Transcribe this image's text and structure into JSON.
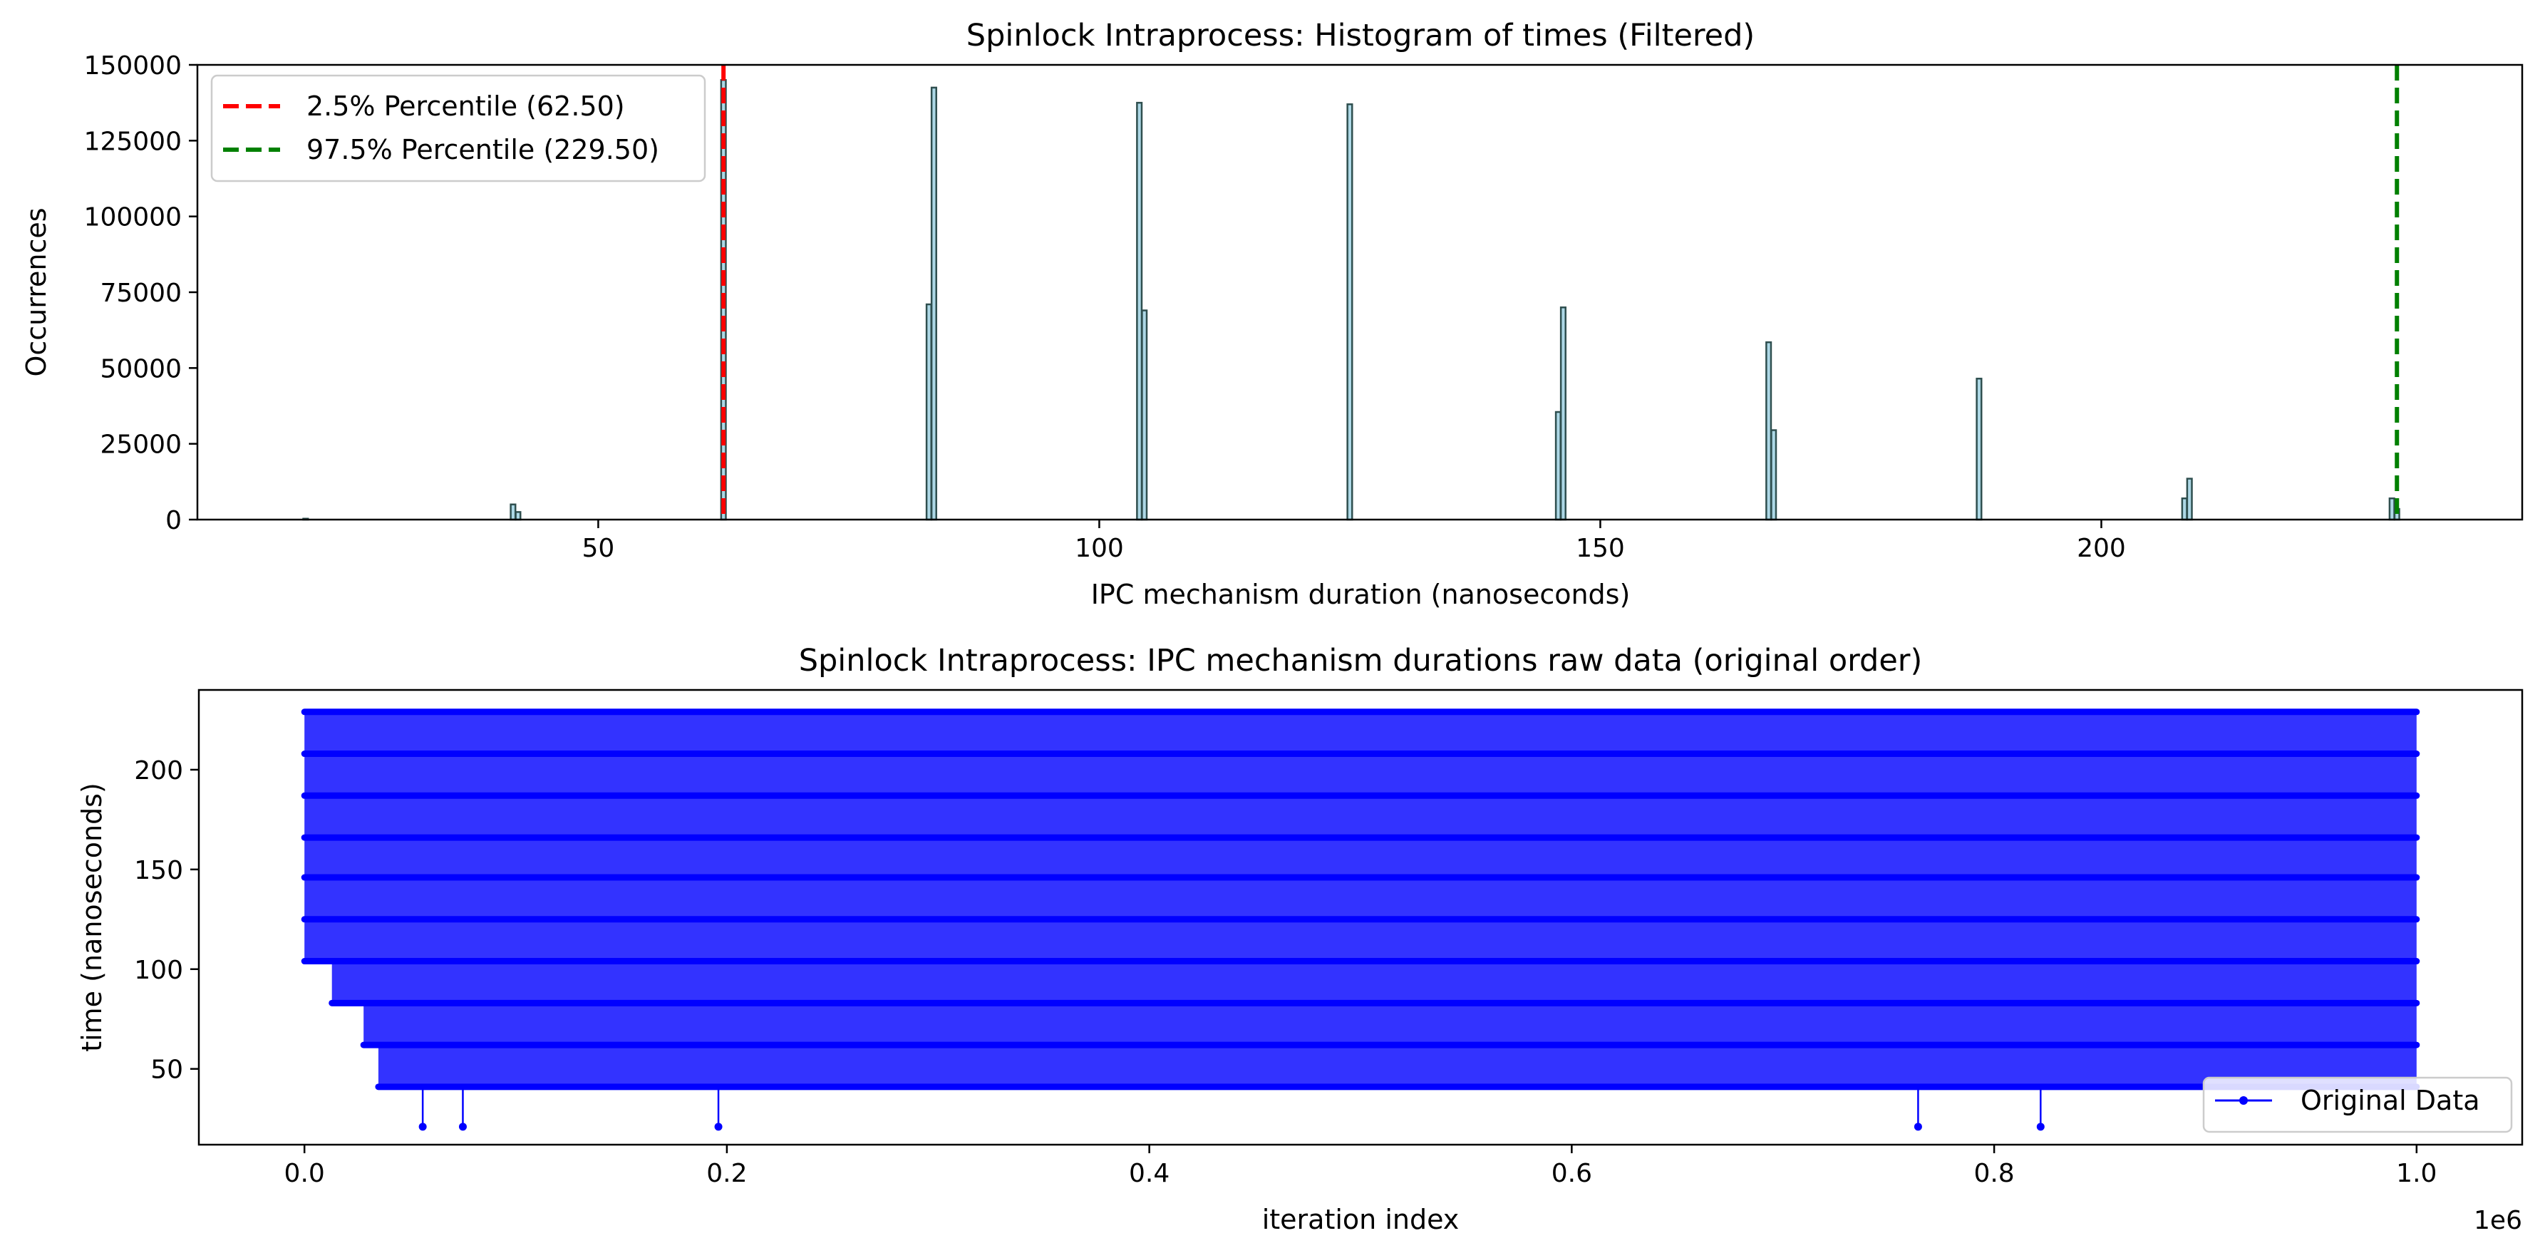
{
  "chart_data": [
    {
      "type": "bar",
      "title": "Spinlock Intraprocess: Histogram of times (Filtered)",
      "xlabel": "IPC mechanism duration (nanoseconds)",
      "ylabel": "Occurrences",
      "xlim": [
        10,
        242
      ],
      "ylim": [
        0,
        150000
      ],
      "xticks": [
        50,
        100,
        150,
        200
      ],
      "yticks": [
        0,
        25000,
        50000,
        75000,
        100000,
        125000,
        150000
      ],
      "bin_width": 0.47,
      "bars": [
        {
          "x": 20.8,
          "value": 300
        },
        {
          "x": 41.5,
          "value": 5000
        },
        {
          "x": 42.0,
          "value": 2500
        },
        {
          "x": 62.5,
          "value": 145000
        },
        {
          "x": 83.0,
          "value": 71000
        },
        {
          "x": 83.5,
          "value": 142500
        },
        {
          "x": 104.0,
          "value": 137500
        },
        {
          "x": 104.5,
          "value": 69000
        },
        {
          "x": 125.0,
          "value": 137000
        },
        {
          "x": 145.8,
          "value": 35500
        },
        {
          "x": 146.3,
          "value": 70000
        },
        {
          "x": 166.8,
          "value": 58500
        },
        {
          "x": 167.3,
          "value": 29500
        },
        {
          "x": 187.8,
          "value": 46500
        },
        {
          "x": 208.3,
          "value": 7000
        },
        {
          "x": 208.8,
          "value": 13500
        },
        {
          "x": 229.0,
          "value": 7000
        },
        {
          "x": 229.5,
          "value": 3500
        }
      ],
      "bar_fill": "#add8e6",
      "bar_edge": "#2f4f4f",
      "percentile_lines": [
        {
          "label": "2.5% Percentile (62.50)",
          "x": 62.5,
          "color": "#ff0000"
        },
        {
          "label": "97.5% Percentile (229.50)",
          "x": 229.5,
          "color": "#008000"
        }
      ],
      "legend": "upper left",
      "grid": false
    },
    {
      "type": "line",
      "title": "Spinlock Intraprocess: IPC mechanism durations raw data (original order)",
      "xlabel": "iteration index",
      "ylabel": "time (nanoseconds)",
      "x_offset_label": "1e6",
      "xlim": [
        -50000,
        1050000
      ],
      "ylim": [
        12,
        240
      ],
      "xticks": [
        0.0,
        0.2,
        0.4,
        0.6,
        0.8,
        1.0
      ],
      "yticks": [
        50,
        100,
        150,
        200
      ],
      "levels": [
        {
          "y": 229,
          "x_range": [
            0,
            1000000
          ]
        },
        {
          "y": 208,
          "x_range": [
            0,
            1000000
          ]
        },
        {
          "y": 187,
          "x_range": [
            0,
            1000000
          ]
        },
        {
          "y": 166,
          "x_range": [
            0,
            1000000
          ]
        },
        {
          "y": 146,
          "x_range": [
            0,
            1000000
          ]
        },
        {
          "y": 125,
          "x_range": [
            0,
            1000000
          ]
        },
        {
          "y": 104,
          "x_range": [
            0,
            1000000
          ]
        },
        {
          "y": 83,
          "x_range": [
            13000,
            1000000
          ]
        },
        {
          "y": 62,
          "x_range": [
            28000,
            1000000
          ]
        },
        {
          "y": 41,
          "x_range": [
            35000,
            1000000
          ]
        }
      ],
      "outliers": [
        {
          "x": 56000,
          "y": 21
        },
        {
          "x": 75000,
          "y": 21
        },
        {
          "x": 196000,
          "y": 21
        },
        {
          "x": 764000,
          "y": 21
        },
        {
          "x": 822000,
          "y": 21
        }
      ],
      "series": [
        {
          "name": "Original Data",
          "color": "#0000ff"
        }
      ],
      "legend": "lower right",
      "grid": false
    }
  ]
}
